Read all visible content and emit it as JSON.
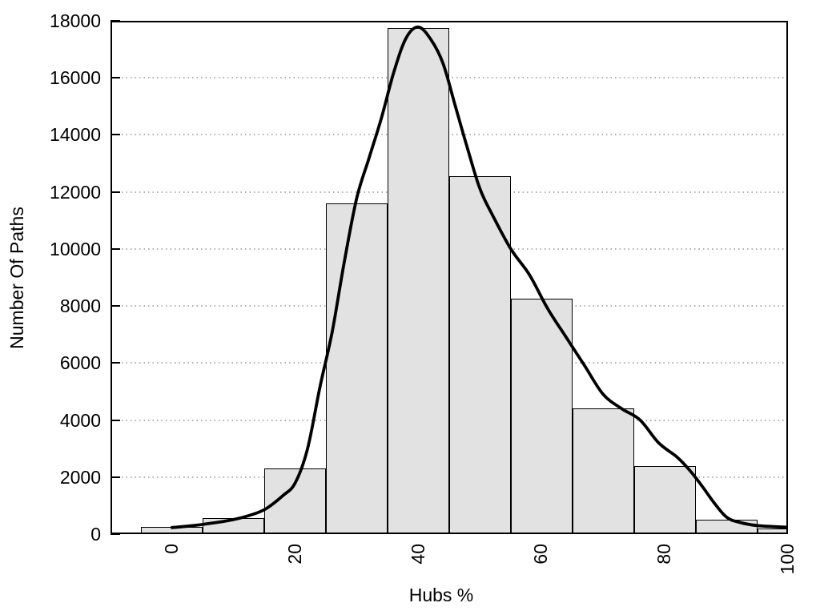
{
  "chart_data": {
    "type": "histogram",
    "title": "",
    "xlabel": "Hubs %",
    "ylabel": "Number Of Paths",
    "xlim": [
      -10,
      100
    ],
    "ylim": [
      0,
      18000
    ],
    "x_ticks": [
      0,
      20,
      40,
      60,
      80,
      100
    ],
    "y_ticks": [
      0,
      2000,
      4000,
      6000,
      8000,
      10000,
      12000,
      14000,
      16000,
      18000
    ],
    "grid_y_dotted_at": [
      2000,
      4000,
      6000,
      8000,
      10000,
      12000,
      14000,
      16000
    ],
    "legend": null,
    "bars": [
      {
        "x_from": -5,
        "x_to": 5,
        "count": 250
      },
      {
        "x_from": 5,
        "x_to": 15,
        "count": 550
      },
      {
        "x_from": 15,
        "x_to": 25,
        "count": 2300
      },
      {
        "x_from": 25,
        "x_to": 35,
        "count": 11600
      },
      {
        "x_from": 35,
        "x_to": 45,
        "count": 17750
      },
      {
        "x_from": 45,
        "x_to": 55,
        "count": 12550
      },
      {
        "x_from": 55,
        "x_to": 65,
        "count": 8250
      },
      {
        "x_from": 65,
        "x_to": 75,
        "count": 4400
      },
      {
        "x_from": 75,
        "x_to": 85,
        "count": 2400
      },
      {
        "x_from": 85,
        "x_to": 95,
        "count": 500
      },
      {
        "x_from": 95,
        "x_to": 100,
        "count": 200
      }
    ],
    "density_curve": {
      "x": [
        0,
        3,
        6,
        9,
        12,
        15,
        18,
        20,
        22,
        24,
        26,
        28,
        30,
        32,
        34,
        36,
        38,
        40,
        42,
        44,
        46,
        48,
        50,
        52,
        55,
        58,
        61,
        64,
        67,
        70,
        73,
        76,
        79,
        82,
        84,
        86,
        88,
        90,
        92,
        95,
        100
      ],
      "y": [
        230,
        290,
        370,
        470,
        620,
        860,
        1350,
        1800,
        3000,
        5150,
        7100,
        9600,
        11800,
        13200,
        14600,
        16200,
        17400,
        17780,
        17350,
        16500,
        15000,
        13500,
        12100,
        11200,
        10000,
        9100,
        7900,
        6900,
        5900,
        4900,
        4400,
        4000,
        3200,
        2700,
        2250,
        1700,
        1100,
        600,
        420,
        300,
        240
      ]
    },
    "colors": {
      "bar_fill": "#e2e2e2",
      "bar_border": "#000000",
      "curve": "#000000",
      "grid": "#b0b0b0",
      "axis": "#000000",
      "text": "#000000"
    }
  }
}
